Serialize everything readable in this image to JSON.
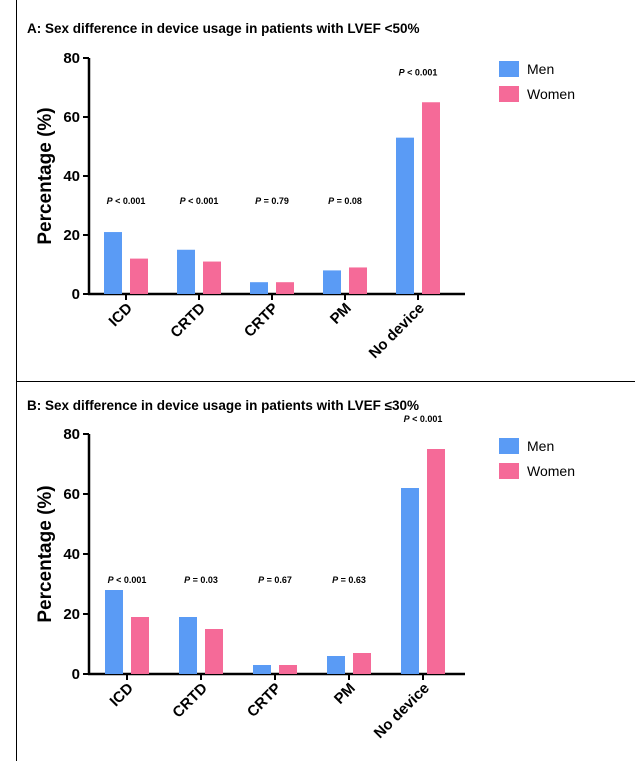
{
  "panels": [
    {
      "title": "A: Sex difference in device usage in patients with LVEF <50%",
      "chart_data": {
        "type": "bar",
        "categories": [
          "ICD",
          "CRTD",
          "CRTP",
          "PM",
          "No device"
        ],
        "series": [
          {
            "name": "Men",
            "values": [
              21,
              15,
              4,
              8,
              53
            ],
            "color": "#5a9bf5"
          },
          {
            "name": "Women",
            "values": [
              12,
              11,
              4,
              9,
              65
            ],
            "color": "#f56a98"
          }
        ],
        "p_values": [
          "P < 0.001",
          "P < 0.001",
          "P = 0.79",
          "P = 0.08",
          "P < 0.001"
        ],
        "ylabel": "Percentage (%)",
        "ylim": [
          0,
          80
        ],
        "yticks": [
          0,
          20,
          40,
          60,
          80
        ],
        "legend_position": "top-right",
        "grid": false
      }
    },
    {
      "title": "B: Sex difference in device usage in patients with LVEF ≤30%",
      "chart_data": {
        "type": "bar",
        "categories": [
          "ICD",
          "CRTD",
          "CRTP",
          "PM",
          "No device"
        ],
        "series": [
          {
            "name": "Men",
            "values": [
              28,
              19,
              3,
              6,
              62
            ],
            "color": "#5a9bf5"
          },
          {
            "name": "Women",
            "values": [
              19,
              15,
              3,
              7,
              75
            ],
            "color": "#f56a98"
          }
        ],
        "p_values": [
          "P < 0.001",
          "P = 0.03",
          "P = 0.67",
          "P = 0.63",
          "P < 0.001"
        ],
        "ylabel": "Percentage (%)",
        "ylim": [
          0,
          80
        ],
        "yticks": [
          0,
          20,
          40,
          60,
          80
        ],
        "legend_position": "top-right",
        "grid": false
      }
    }
  ]
}
